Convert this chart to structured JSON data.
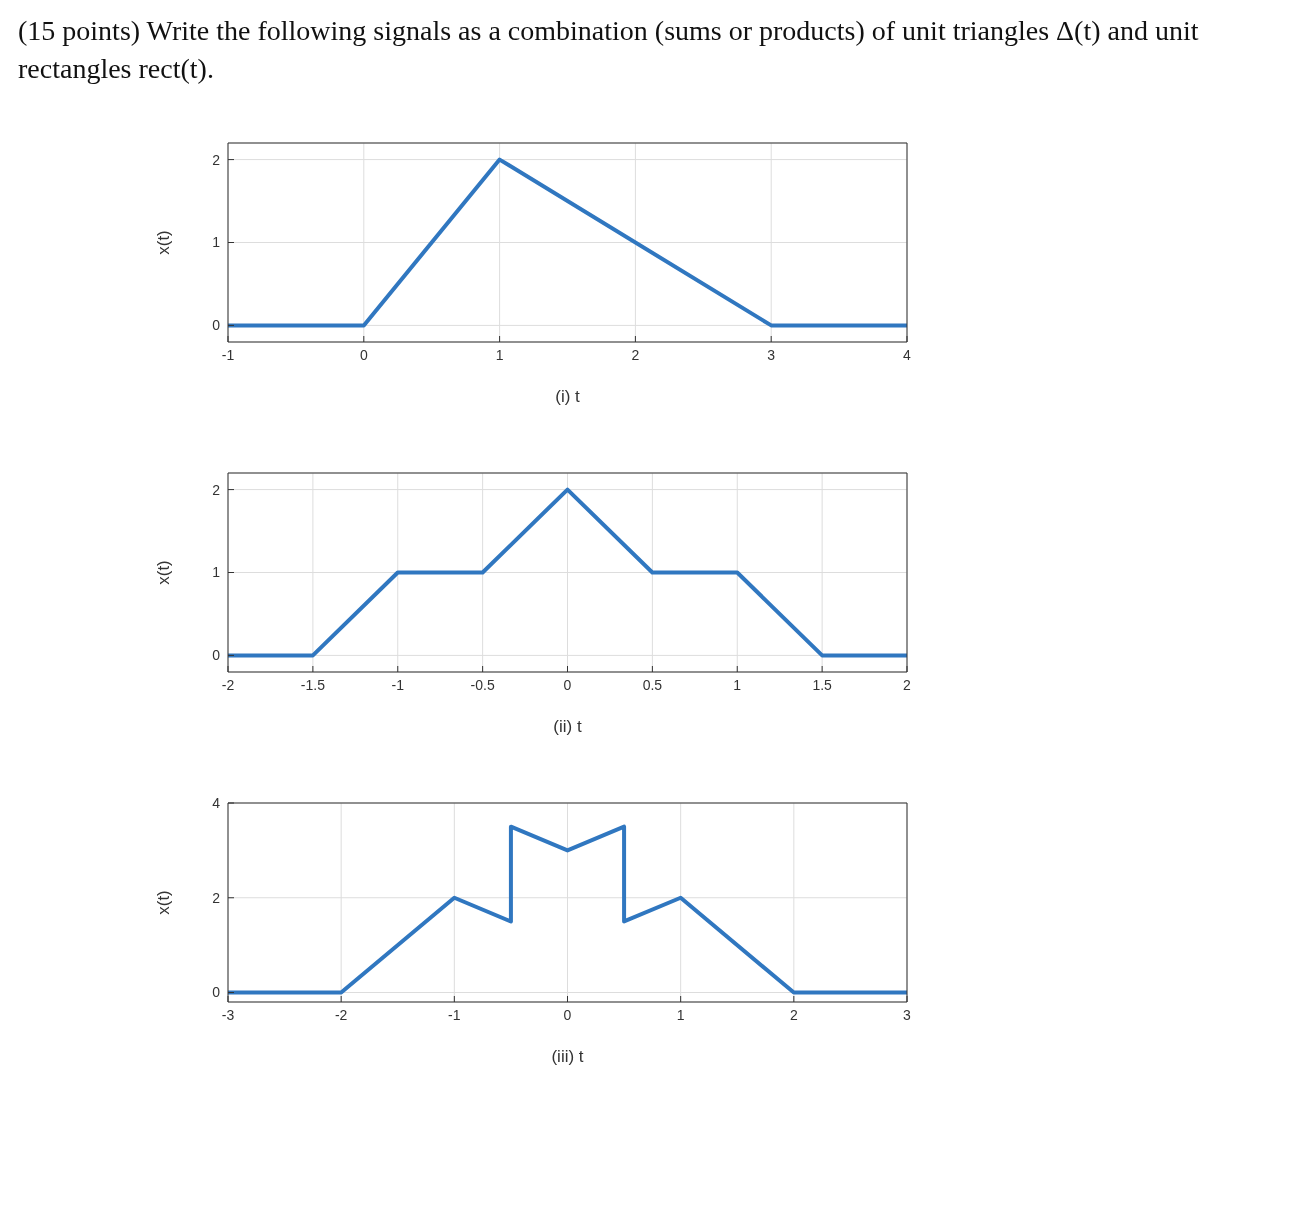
{
  "chart_data": [
    {
      "type": "line",
      "title": "(15 points) Write the following signals as a combination (sums or products) of unit triangles Δ(t) and unit rectangles rect(t).",
      "xlabel": "(i) t",
      "ylabel": "x(t)",
      "xlim": [
        -1,
        4
      ],
      "ylim": [
        -0.2,
        2.2
      ],
      "xticks": [
        -1,
        0,
        1,
        2,
        3,
        4
      ],
      "yticks": [
        0,
        1,
        2
      ],
      "grid": true,
      "series": [
        {
          "color": "#3077c0",
          "x": [
            -1,
            0,
            1,
            3,
            4
          ],
          "values": [
            0,
            0,
            2,
            0,
            0
          ]
        }
      ]
    },
    {
      "type": "line",
      "xlabel": "(ii) t",
      "ylabel": "x(t)",
      "xlim": [
        -2,
        2
      ],
      "ylim": [
        -0.2,
        2.2
      ],
      "xticks": [
        -2,
        -1.5,
        -1,
        -0.5,
        0,
        0.5,
        1,
        1.5,
        2
      ],
      "yticks": [
        0,
        1,
        2
      ],
      "grid": true,
      "series": [
        {
          "color": "#3077c0",
          "x": [
            -2,
            -1.5,
            -1,
            -0.5,
            0,
            0.5,
            1,
            1.5,
            2
          ],
          "values": [
            0,
            0,
            1,
            1,
            2,
            1,
            1,
            0,
            0
          ]
        }
      ]
    },
    {
      "type": "line",
      "xlabel": "(iii) t",
      "ylabel": "x(t)",
      "xlim": [
        -3,
        3
      ],
      "ylim": [
        -0.2,
        4
      ],
      "xticks": [
        -3,
        -2,
        -1,
        0,
        1,
        2,
        3
      ],
      "yticks": [
        0,
        2,
        4
      ],
      "grid": true,
      "series": [
        {
          "color": "#3077c0",
          "x": [
            -3,
            -2,
            -1,
            -0.5,
            -0.5,
            0,
            0.5,
            0.5,
            1,
            2,
            3
          ],
          "values": [
            0,
            0,
            2,
            1.5,
            3.5,
            3,
            3.5,
            1.5,
            2,
            0,
            0
          ]
        }
      ]
    }
  ]
}
